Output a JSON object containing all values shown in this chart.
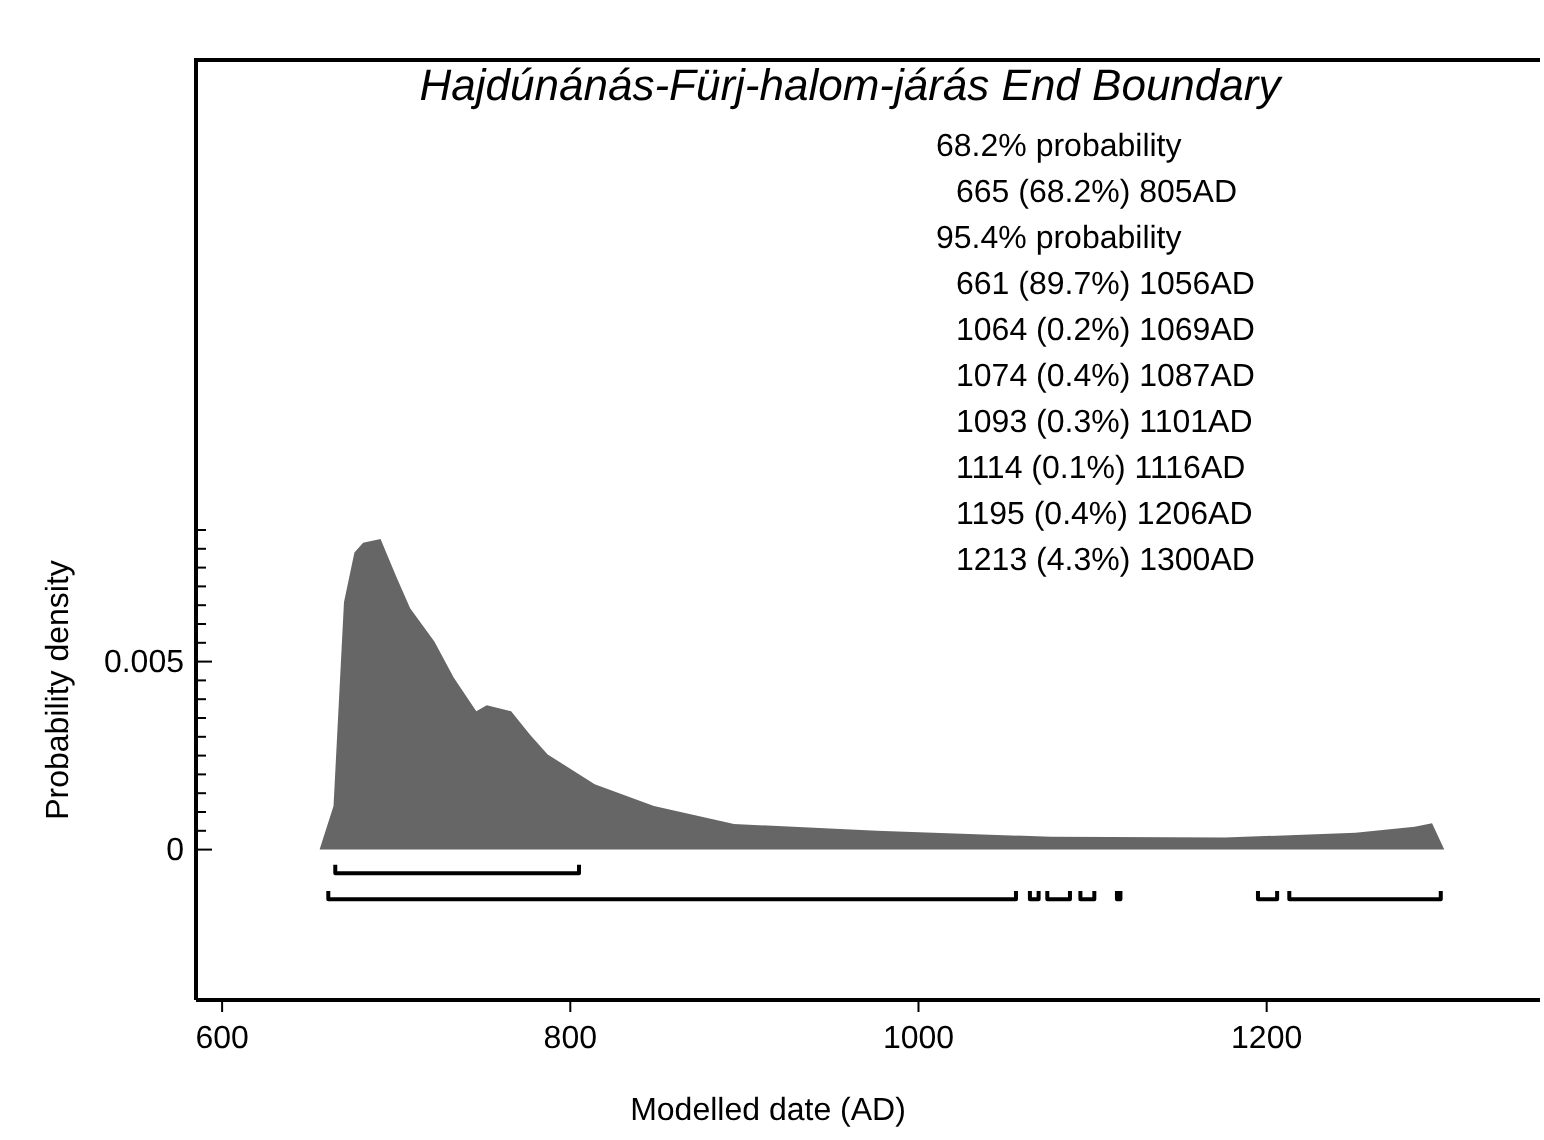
{
  "chart_data": {
    "type": "area",
    "title": "Hajdúnánás-Fürj-halom-járás End Boundary",
    "xlabel": "Modelled date (AD)",
    "ylabel": "Probability density",
    "annotations": [
      "68.2% probability",
      "665 (68.2%) 805AD",
      "95.4% probability",
      "661 (89.7%) 1056AD",
      "1064 (0.2%) 1069AD",
      "1074 (0.4%) 1087AD",
      "1093 (0.3%) 1101AD",
      "1114 (0.1%) 1116AD",
      "1195 (0.4%) 1206AD",
      "1213 (4.3%) 1300AD"
    ],
    "xlim": [
      585,
      1357
    ],
    "xticks": [
      600,
      800,
      1000,
      1200
    ],
    "ylim": [
      -0.004,
      0.021
    ],
    "yticks": [
      {
        "value": 0,
        "label": "0"
      },
      {
        "value": 0.0005,
        "label": null
      },
      {
        "value": 0.001,
        "label": null
      },
      {
        "value": 0.0015,
        "label": null
      },
      {
        "value": 0.002,
        "label": null
      },
      {
        "value": 0.0025,
        "label": null
      },
      {
        "value": 0.003,
        "label": null
      },
      {
        "value": 0.0035,
        "label": null
      },
      {
        "value": 0.004,
        "label": null
      },
      {
        "value": 0.0045,
        "label": null
      },
      {
        "value": 0.005,
        "label": "0.005"
      },
      {
        "value": 0.0055,
        "label": null
      },
      {
        "value": 0.006,
        "label": null
      },
      {
        "value": 0.0065,
        "label": null
      },
      {
        "value": 0.007,
        "label": null
      },
      {
        "value": 0.0075,
        "label": null
      },
      {
        "value": 0.008,
        "label": null
      },
      {
        "value": 0.0085,
        "label": null
      }
    ],
    "grid": false,
    "series": [
      {
        "color": "#666666",
        "x": [
          656,
          664,
          670,
          676,
          681,
          691,
          700,
          708,
          722,
          733,
          746,
          752,
          766,
          777,
          787,
          814,
          848,
          894,
          976,
          1076,
          1176,
          1251,
          1285,
          1295,
          1302
        ],
        "values": [
          0,
          0.00116,
          0.00658,
          0.0079,
          0.00816,
          0.00826,
          0.00726,
          0.00642,
          0.00553,
          0.00458,
          0.00368,
          0.00384,
          0.00368,
          0.00305,
          0.00253,
          0.00174,
          0.00116,
          0.00068,
          0.0005,
          0.00034,
          0.00032,
          0.00045,
          0.00061,
          0.0007,
          0
        ]
      },
      {
        "type": "line",
        "color": "#000000",
        "x": [
          665,
          665,
          805,
          805
        ],
        "values": [
          -0.0004,
          -0.00063,
          -0.00063,
          -0.0004
        ]
      },
      {
        "type": "line",
        "color": "#000000",
        "x": [
          661,
          661,
          1056,
          1056,
          null,
          1064,
          1064,
          1069,
          1069,
          null,
          1074,
          1074,
          1087,
          1087,
          null,
          1093,
          1093,
          1101,
          1101,
          null,
          1114,
          1114,
          1116,
          1116,
          null,
          1195,
          1195,
          1206,
          1206,
          null,
          1213,
          1213,
          1300,
          1300
        ],
        "values": [
          -0.0011,
          -0.00132,
          -0.00132,
          -0.0011,
          null,
          -0.0011,
          -0.00132,
          -0.00132,
          -0.0011,
          null,
          -0.0011,
          -0.00132,
          -0.00132,
          -0.0011,
          null,
          -0.0011,
          -0.00132,
          -0.00132,
          -0.0011,
          null,
          -0.0011,
          -0.00132,
          -0.00132,
          -0.0011,
          null,
          -0.0011,
          -0.00132,
          -0.00132,
          -0.0011,
          null,
          -0.0011,
          -0.00132,
          -0.00132,
          -0.0011
        ]
      }
    ]
  }
}
